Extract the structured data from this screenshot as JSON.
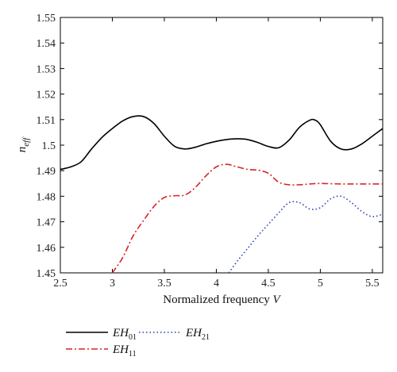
{
  "chart_data": {
    "type": "line",
    "xlabel_main": "Normalized frequency ",
    "xlabel_var": "V",
    "ylabel_main": "n",
    "ylabel_sub": "eff",
    "xlim": [
      2.5,
      5.6
    ],
    "ylim": [
      1.45,
      1.55
    ],
    "x_ticks": [
      "2.5",
      "3",
      "3.5",
      "4",
      "4.5",
      "5",
      "5.5"
    ],
    "y_ticks": [
      "1.45",
      "1.46",
      "1.47",
      "1.48",
      "1.49",
      "1.5",
      "1.51",
      "1.52",
      "1.53",
      "1.54",
      "1.55"
    ],
    "grid": false,
    "legend_position": "bottom",
    "series": [
      {
        "name": "EH01",
        "label_main": "EH",
        "label_sub": "01",
        "color": "#000000",
        "dash": "",
        "points": [
          [
            2.5,
            1.4905
          ],
          [
            2.6,
            1.4915
          ],
          [
            2.7,
            1.4935
          ],
          [
            2.8,
            1.4985
          ],
          [
            2.9,
            1.503
          ],
          [
            3.0,
            1.5065
          ],
          [
            3.1,
            1.5095
          ],
          [
            3.2,
            1.5112
          ],
          [
            3.3,
            1.5112
          ],
          [
            3.4,
            1.5085
          ],
          [
            3.5,
            1.5035
          ],
          [
            3.6,
            1.4995
          ],
          [
            3.7,
            1.4985
          ],
          [
            3.8,
            1.4992
          ],
          [
            3.9,
            1.5005
          ],
          [
            4.0,
            1.5015
          ],
          [
            4.1,
            1.5022
          ],
          [
            4.2,
            1.5025
          ],
          [
            4.3,
            1.5022
          ],
          [
            4.4,
            1.501
          ],
          [
            4.5,
            1.4995
          ],
          [
            4.6,
            1.499
          ],
          [
            4.7,
            1.502
          ],
          [
            4.8,
            1.507
          ],
          [
            4.9,
            1.5098
          ],
          [
            4.95,
            1.5098
          ],
          [
            5.0,
            1.508
          ],
          [
            5.1,
            1.5015
          ],
          [
            5.2,
            1.4985
          ],
          [
            5.3,
            1.4985
          ],
          [
            5.4,
            1.5005
          ],
          [
            5.5,
            1.5035
          ],
          [
            5.6,
            1.5065
          ]
        ]
      },
      {
        "name": "EH11",
        "label_main": "EH",
        "label_sub": "11",
        "color": "#d62728",
        "dash": "8 3 2 3",
        "points": [
          [
            3.0,
            1.45
          ],
          [
            3.1,
            1.456
          ],
          [
            3.2,
            1.4645
          ],
          [
            3.3,
            1.4705
          ],
          [
            3.4,
            1.476
          ],
          [
            3.5,
            1.4795
          ],
          [
            3.6,
            1.4802
          ],
          [
            3.7,
            1.4805
          ],
          [
            3.8,
            1.4835
          ],
          [
            3.9,
            1.488
          ],
          [
            4.0,
            1.4915
          ],
          [
            4.1,
            1.4925
          ],
          [
            4.2,
            1.4915
          ],
          [
            4.3,
            1.4905
          ],
          [
            4.4,
            1.4902
          ],
          [
            4.5,
            1.489
          ],
          [
            4.6,
            1.4855
          ],
          [
            4.7,
            1.4845
          ],
          [
            4.8,
            1.4845
          ],
          [
            4.9,
            1.4848
          ],
          [
            5.0,
            1.485
          ],
          [
            5.2,
            1.4848
          ],
          [
            5.4,
            1.4848
          ],
          [
            5.6,
            1.4848
          ]
        ]
      },
      {
        "name": "EH21",
        "label_main": "EH",
        "label_sub": "21",
        "color": "#2a3fb0",
        "dash": "1.5 3",
        "points": [
          [
            4.12,
            1.45
          ],
          [
            4.2,
            1.4545
          ],
          [
            4.3,
            1.4595
          ],
          [
            4.4,
            1.4645
          ],
          [
            4.5,
            1.469
          ],
          [
            4.6,
            1.4735
          ],
          [
            4.7,
            1.4775
          ],
          [
            4.8,
            1.4775
          ],
          [
            4.9,
            1.475
          ],
          [
            5.0,
            1.4755
          ],
          [
            5.1,
            1.479
          ],
          [
            5.2,
            1.48
          ],
          [
            5.3,
            1.4775
          ],
          [
            5.4,
            1.474
          ],
          [
            5.5,
            1.472
          ],
          [
            5.6,
            1.473
          ]
        ]
      }
    ]
  }
}
